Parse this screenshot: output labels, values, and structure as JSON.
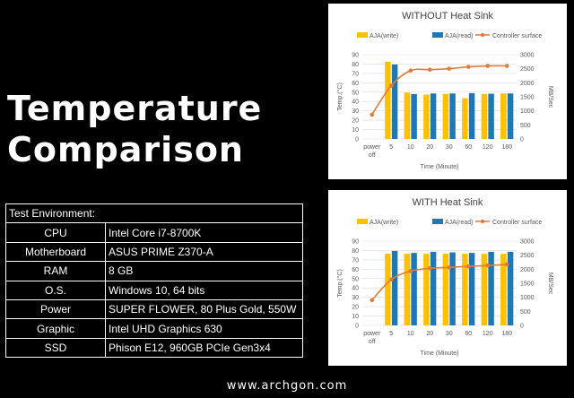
{
  "page": {
    "title_line1": "Temperature",
    "title_line2": "Comparison",
    "footer_url": "www.archgon.com"
  },
  "specs": {
    "header": "Test Environment:",
    "rows": [
      {
        "label": "CPU",
        "value": "Intel Core i7-8700K"
      },
      {
        "label": "Motherboard",
        "value": "ASUS PRIME Z370-A"
      },
      {
        "label": "RAM",
        "value": "8 GB"
      },
      {
        "label": "O.S.",
        "value": "Windows 10, 64 bits"
      },
      {
        "label": "Power",
        "value": "SUPER FLOWER, 80 Plus Gold, 550W"
      },
      {
        "label": "Graphic",
        "value": "Intel UHD Graphics 630"
      },
      {
        "label": "SSD",
        "value": "Phison E12, 960GB PCIe Gen3x4"
      }
    ]
  },
  "colors": {
    "write": "#FFC000",
    "read": "#1F77B4",
    "line": "#E07B39",
    "grid": "#D9D9D9",
    "axis_text": "#595959"
  },
  "chart_data": [
    {
      "type": "bar",
      "title": "WITHOUT Heat Sink",
      "xlabel": "Time (Minute)",
      "ylabel": "Temp.(°C)",
      "y2label": "MB/Sec",
      "categories": [
        "power off",
        "5",
        "10",
        "20",
        "30",
        "60",
        "120",
        "180"
      ],
      "ylim": [
        0,
        90
      ],
      "yticks": [
        0,
        10,
        20,
        30,
        40,
        50,
        60,
        70,
        80,
        90
      ],
      "y2lim": [
        0,
        3000
      ],
      "y2ticks": [
        0,
        500,
        1000,
        1500,
        2000,
        2500,
        3000
      ],
      "legend_position": "top",
      "grid": true,
      "series": [
        {
          "name": "AJA(write)",
          "kind": "bar",
          "axis": "right",
          "values": [
            null,
            2750,
            1650,
            1580,
            1600,
            1450,
            1600,
            1620
          ]
        },
        {
          "name": "AJA(read)",
          "kind": "bar",
          "axis": "right",
          "values": [
            null,
            2650,
            1600,
            1620,
            1620,
            1630,
            1610,
            1620
          ]
        },
        {
          "name": "Controller surface",
          "kind": "line",
          "axis": "left",
          "values": [
            26,
            57,
            73,
            74,
            75,
            77,
            78,
            78
          ]
        }
      ]
    },
    {
      "type": "bar",
      "title": "WITH Heat Sink",
      "xlabel": "Time (Minute)",
      "ylabel": "Temp.(°C)",
      "y2label": "MB/Sec",
      "categories": [
        "power off",
        "5",
        "10",
        "20",
        "30",
        "60",
        "120",
        "180"
      ],
      "ylim": [
        0,
        90
      ],
      "yticks": [
        0,
        10,
        20,
        30,
        40,
        50,
        60,
        70,
        80,
        90
      ],
      "y2lim": [
        0,
        3000
      ],
      "y2ticks": [
        0,
        500,
        1000,
        1500,
        2000,
        2500,
        3000
      ],
      "legend_position": "top",
      "grid": true,
      "series": [
        {
          "name": "AJA(write)",
          "kind": "bar",
          "axis": "right",
          "values": [
            null,
            2550,
            2550,
            2550,
            2550,
            2550,
            2550,
            2550
          ]
        },
        {
          "name": "AJA(read)",
          "kind": "bar",
          "axis": "right",
          "values": [
            null,
            2650,
            2580,
            2620,
            2600,
            2580,
            2620,
            2620
          ]
        },
        {
          "name": "Controller surface",
          "kind": "line",
          "axis": "left",
          "values": [
            27,
            49,
            58,
            61,
            62,
            63,
            64,
            65
          ]
        }
      ]
    }
  ]
}
